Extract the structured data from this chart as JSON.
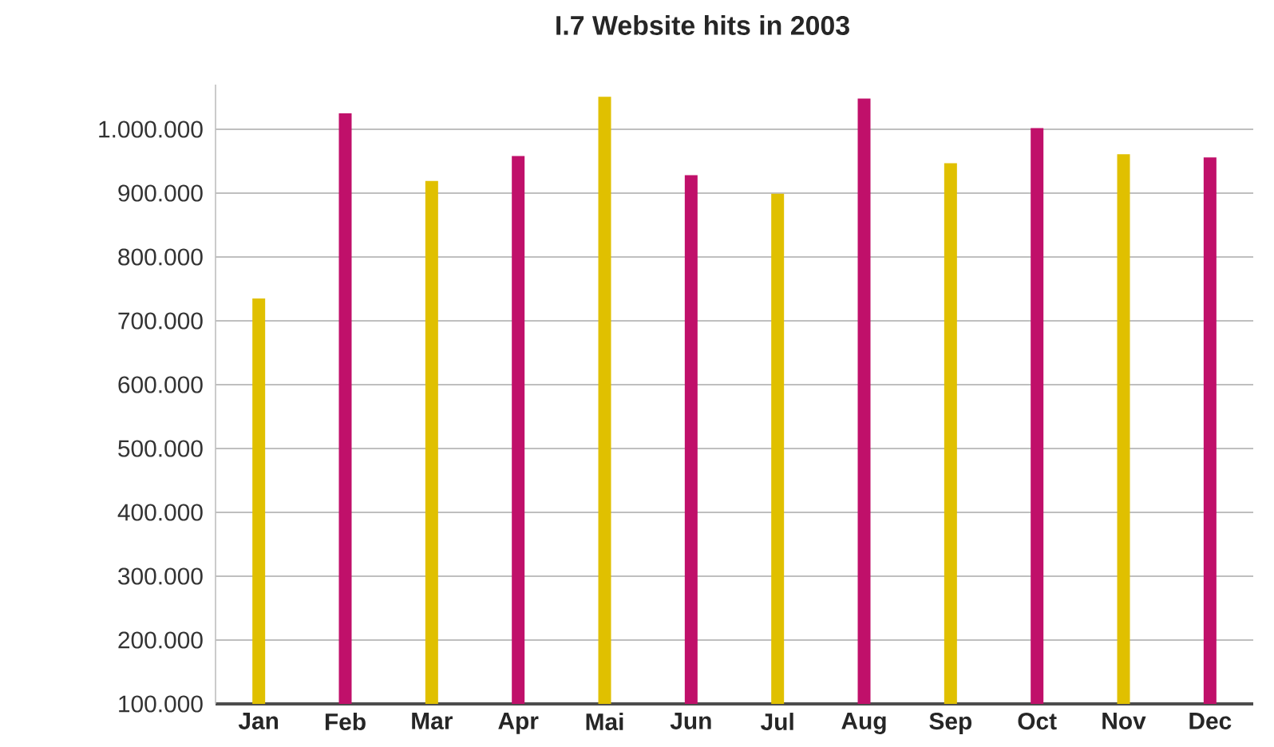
{
  "chart_data": {
    "type": "bar",
    "title": "I.7 Website hits in 2003",
    "categories": [
      "Jan",
      "Feb",
      "Mar",
      "Apr",
      "Mai",
      "Jun",
      "Jul",
      "Aug",
      "Sep",
      "Oct",
      "Nov",
      "Dec"
    ],
    "values": [
      735000,
      1025000,
      919000,
      958000,
      1051000,
      928000,
      899000,
      1048000,
      947000,
      1002000,
      961000,
      956000
    ],
    "colors": [
      "#e0c000",
      "#c0106a",
      "#e0c000",
      "#c0106a",
      "#e0c000",
      "#c0106a",
      "#e0c000",
      "#c0106a",
      "#e0c000",
      "#c0106a",
      "#e0c000",
      "#c0106a"
    ],
    "ylim": [
      100000,
      1070000
    ],
    "yticks": [
      {
        "value": 100000,
        "label": "100.000"
      },
      {
        "value": 200000,
        "label": "200.000"
      },
      {
        "value": 300000,
        "label": "300.000"
      },
      {
        "value": 400000,
        "label": "400.000"
      },
      {
        "value": 500000,
        "label": "500.000"
      },
      {
        "value": 600000,
        "label": "600.000"
      },
      {
        "value": 700000,
        "label": "700.000"
      },
      {
        "value": 800000,
        "label": "800.000"
      },
      {
        "value": 900000,
        "label": "900.000"
      },
      {
        "value": 1000000,
        "label": "1.000.000"
      }
    ],
    "grid": "y"
  }
}
